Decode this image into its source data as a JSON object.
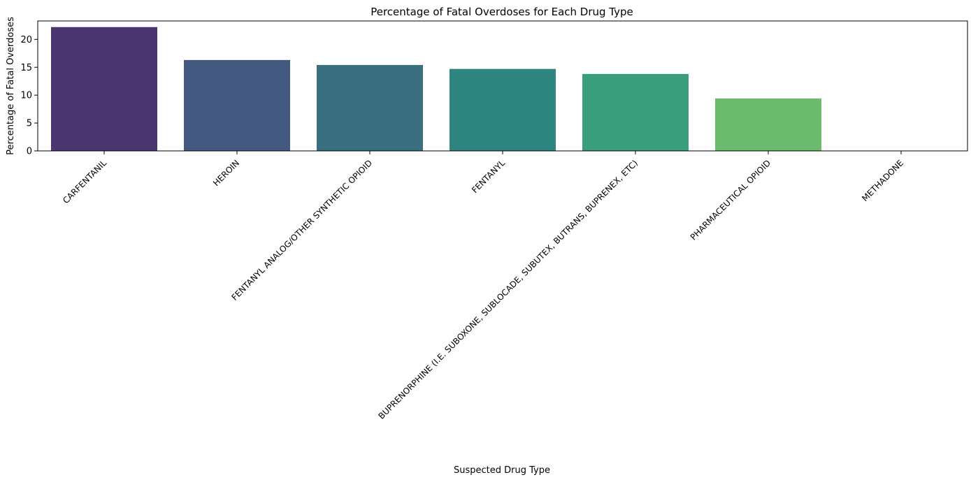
{
  "chart_data": {
    "type": "bar",
    "title": "Percentage of Fatal Overdoses for Each Drug Type",
    "xlabel": "Suspected Drug Type",
    "ylabel": "Percentage of Fatal Overdoses",
    "categories": [
      "CARFENTANIL",
      "HEROIN",
      "FENTANYL ANALOG/OTHER SYNTHETIC OPIOID",
      "FENTANYL",
      "BUPRENORPHINE (I.E. SUBOXONE, SUBLOCADE, SUBUTEX, BUTRANS, BUPRENEX, ETC)",
      "PHARMACEUTICAL OPIOID",
      "METHADONE"
    ],
    "values": [
      22.2,
      16.3,
      15.4,
      14.7,
      13.8,
      9.4,
      0.0
    ],
    "colors": [
      "#4b3570",
      "#44597f",
      "#386e80",
      "#2e847f",
      "#3a9e7c",
      "#6bbd6d",
      "#a8d64d"
    ],
    "yticks": [
      0,
      5,
      10,
      15,
      20
    ],
    "ylim": [
      0,
      23.3
    ],
    "grid": false,
    "legend": "none"
  }
}
